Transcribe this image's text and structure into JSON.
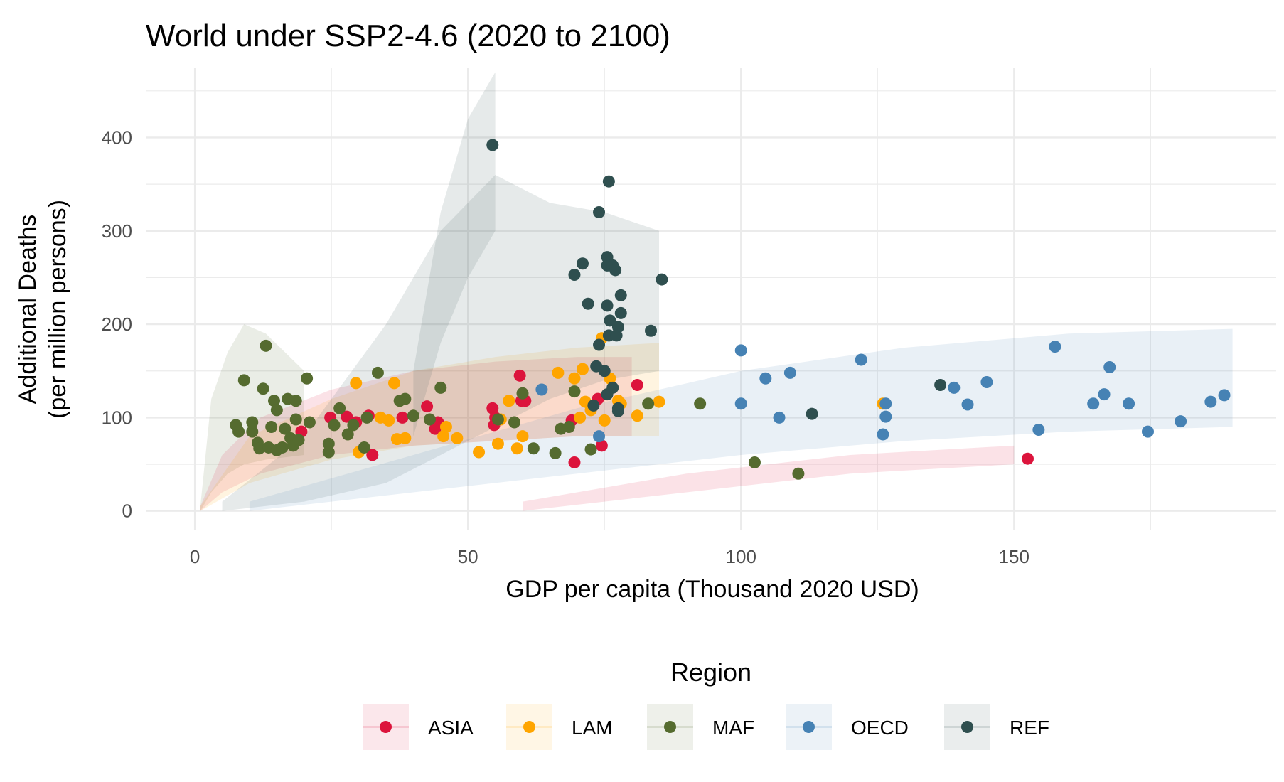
{
  "chart_data": {
    "type": "scatter",
    "title": "World under SSP2-4.6 (2020 to 2100)",
    "xlabel": "GDP per capita (Thousand 2020 USD)",
    "ylabel_line1": "Additional Deaths",
    "ylabel_line2": "(per million persons)",
    "xlim": [
      -9,
      198
    ],
    "ylim": [
      -20,
      475
    ],
    "x_ticks": [
      0,
      50,
      100,
      150
    ],
    "y_ticks": [
      0,
      100,
      200,
      300,
      400
    ],
    "grid": true,
    "legend": {
      "title": "Region",
      "placement": "bottom",
      "entries": [
        "ASIA",
        "LAM",
        "MAF",
        "OECD",
        "REF"
      ]
    },
    "colors": {
      "ASIA": "#DC143C",
      "LAM": "#FFA500",
      "MAF": "#556B2F",
      "OECD": "#4682B4",
      "REF": "#2F4F4F"
    },
    "bands": [
      {
        "region": "MAF",
        "x": [
          1,
          3,
          6,
          9,
          13,
          20
        ],
        "lower": [
          0,
          20,
          40,
          50,
          55,
          60
        ],
        "upper": [
          5,
          120,
          170,
          200,
          190,
          150
        ]
      },
      {
        "region": "ASIA",
        "x": [
          1,
          5,
          12,
          25,
          40,
          55,
          70,
          80
        ],
        "lower": [
          0,
          20,
          40,
          60,
          70,
          75,
          80,
          80
        ],
        "upper": [
          5,
          60,
          100,
          130,
          150,
          160,
          165,
          165
        ]
      },
      {
        "region": "LAM",
        "x": [
          1,
          10,
          25,
          40,
          55,
          70,
          85
        ],
        "lower": [
          0,
          30,
          55,
          70,
          75,
          80,
          80
        ],
        "upper": [
          5,
          80,
          120,
          150,
          165,
          175,
          180
        ]
      },
      {
        "region": "REF",
        "x": [
          5,
          20,
          35,
          45,
          55,
          65,
          75,
          85
        ],
        "lower": [
          0,
          10,
          30,
          60,
          90,
          120,
          140,
          150
        ],
        "upper": [
          10,
          80,
          200,
          300,
          360,
          330,
          320,
          300
        ]
      },
      {
        "region": "REF",
        "x": [
          40,
          45,
          50,
          55
        ],
        "lower": [
          80,
          180,
          250,
          300
        ],
        "upper": [
          150,
          320,
          420,
          470
        ]
      },
      {
        "region": "OECD",
        "x": [
          10,
          40,
          70,
          100,
          130,
          160,
          190
        ],
        "lower": [
          0,
          20,
          40,
          60,
          75,
          85,
          90
        ],
        "upper": [
          10,
          60,
          110,
          150,
          175,
          190,
          195
        ]
      },
      {
        "region": "ASIA",
        "x": [
          60,
          90,
          120,
          150
        ],
        "lower": [
          0,
          20,
          40,
          50
        ],
        "upper": [
          10,
          40,
          60,
          70
        ]
      }
    ],
    "series": [
      {
        "name": "ASIA",
        "points": [
          [
            19.5,
            85
          ],
          [
            24.8,
            100
          ],
          [
            27.8,
            101
          ],
          [
            29.5,
            95
          ],
          [
            31.8,
            102
          ],
          [
            32.5,
            60
          ],
          [
            38,
            100
          ],
          [
            42.5,
            112
          ],
          [
            44,
            88
          ],
          [
            44.5,
            95
          ],
          [
            54.5,
            110
          ],
          [
            54.8,
            92
          ],
          [
            55,
            100
          ],
          [
            59.5,
            145
          ],
          [
            59.8,
            118
          ],
          [
            60.5,
            118
          ],
          [
            69,
            97
          ],
          [
            69.5,
            52
          ],
          [
            74.5,
            70
          ],
          [
            73.8,
            120
          ],
          [
            81,
            135
          ],
          [
            152.5,
            56
          ]
        ]
      },
      {
        "name": "LAM",
        "points": [
          [
            29.5,
            137
          ],
          [
            30,
            63
          ],
          [
            34,
            100
          ],
          [
            35.5,
            97
          ],
          [
            36.5,
            137
          ],
          [
            37,
            77
          ],
          [
            38.5,
            78
          ],
          [
            45.5,
            80
          ],
          [
            46,
            90
          ],
          [
            48,
            78
          ],
          [
            52,
            63
          ],
          [
            55.5,
            72
          ],
          [
            56,
            98
          ],
          [
            57.5,
            118
          ],
          [
            59,
            67
          ],
          [
            60,
            80
          ],
          [
            66.5,
            148
          ],
          [
            69.5,
            142
          ],
          [
            70.5,
            100
          ],
          [
            71,
            152
          ],
          [
            71.5,
            117
          ],
          [
            72.5,
            108
          ],
          [
            74.5,
            185
          ],
          [
            75,
            97
          ],
          [
            76,
            142
          ],
          [
            77.5,
            118
          ],
          [
            78,
            115
          ],
          [
            81,
            102
          ],
          [
            85,
            117
          ],
          [
            126,
            115
          ]
        ]
      },
      {
        "name": "MAF",
        "points": [
          [
            7.5,
            92
          ],
          [
            8,
            85
          ],
          [
            9,
            140
          ],
          [
            10.5,
            85
          ],
          [
            10.5,
            95
          ],
          [
            11.5,
            73
          ],
          [
            11.8,
            67
          ],
          [
            12.5,
            131
          ],
          [
            13,
            177
          ],
          [
            13.5,
            68
          ],
          [
            14,
            90
          ],
          [
            14.5,
            118
          ],
          [
            15,
            108
          ],
          [
            15,
            65
          ],
          [
            16,
            68
          ],
          [
            16.5,
            88
          ],
          [
            17,
            120
          ],
          [
            17.5,
            78
          ],
          [
            18,
            70
          ],
          [
            18.5,
            98
          ],
          [
            18.5,
            118
          ],
          [
            19,
            76
          ],
          [
            20.5,
            142
          ],
          [
            21,
            95
          ],
          [
            24.5,
            72
          ],
          [
            24.5,
            63
          ],
          [
            25.5,
            92
          ],
          [
            26.5,
            110
          ],
          [
            28,
            82
          ],
          [
            29,
            92
          ],
          [
            31,
            68
          ],
          [
            31.5,
            100
          ],
          [
            33.5,
            148
          ],
          [
            37.5,
            118
          ],
          [
            38.5,
            120
          ],
          [
            40,
            102
          ],
          [
            43,
            98
          ],
          [
            45,
            132
          ],
          [
            55.5,
            98
          ],
          [
            58.5,
            95
          ],
          [
            60,
            126
          ],
          [
            62,
            67
          ],
          [
            66,
            62
          ],
          [
            67,
            88
          ],
          [
            68.5,
            90
          ],
          [
            69.5,
            128
          ],
          [
            72.5,
            66
          ],
          [
            83,
            115
          ],
          [
            92.5,
            115
          ],
          [
            102.5,
            52
          ],
          [
            110.5,
            40
          ]
        ]
      },
      {
        "name": "OECD",
        "points": [
          [
            63.5,
            130
          ],
          [
            74,
            80
          ],
          [
            100,
            172
          ],
          [
            100,
            115
          ],
          [
            104.5,
            142
          ],
          [
            107,
            100
          ],
          [
            109,
            148
          ],
          [
            122,
            162
          ],
          [
            126,
            82
          ],
          [
            126.5,
            115
          ],
          [
            126.5,
            101
          ],
          [
            139,
            132
          ],
          [
            141.5,
            114
          ],
          [
            145,
            138
          ],
          [
            154.5,
            87
          ],
          [
            157.5,
            176
          ],
          [
            164.5,
            115
          ],
          [
            166.5,
            125
          ],
          [
            167.5,
            154
          ],
          [
            171,
            115
          ],
          [
            174.5,
            85
          ],
          [
            180.5,
            96
          ],
          [
            186,
            117
          ],
          [
            188.5,
            124
          ]
        ]
      },
      {
        "name": "REF",
        "points": [
          [
            54.5,
            392
          ],
          [
            69.5,
            253
          ],
          [
            71,
            265
          ],
          [
            72,
            222
          ],
          [
            73,
            113
          ],
          [
            73.5,
            155
          ],
          [
            74,
            178
          ],
          [
            74,
            320
          ],
          [
            75,
            150
          ],
          [
            75.5,
            272
          ],
          [
            75.5,
            263
          ],
          [
            75.5,
            220
          ],
          [
            75.5,
            125
          ],
          [
            75.8,
            188
          ],
          [
            75.8,
            353
          ],
          [
            76,
            204
          ],
          [
            76.5,
            263
          ],
          [
            76.5,
            132
          ],
          [
            77,
            258
          ],
          [
            77.2,
            188
          ],
          [
            77.5,
            110
          ],
          [
            77.5,
            107
          ],
          [
            77.5,
            197
          ],
          [
            78,
            212
          ],
          [
            78,
            231
          ],
          [
            83.5,
            193
          ],
          [
            85.5,
            248
          ],
          [
            113,
            104
          ],
          [
            136.5,
            135
          ]
        ]
      }
    ]
  }
}
